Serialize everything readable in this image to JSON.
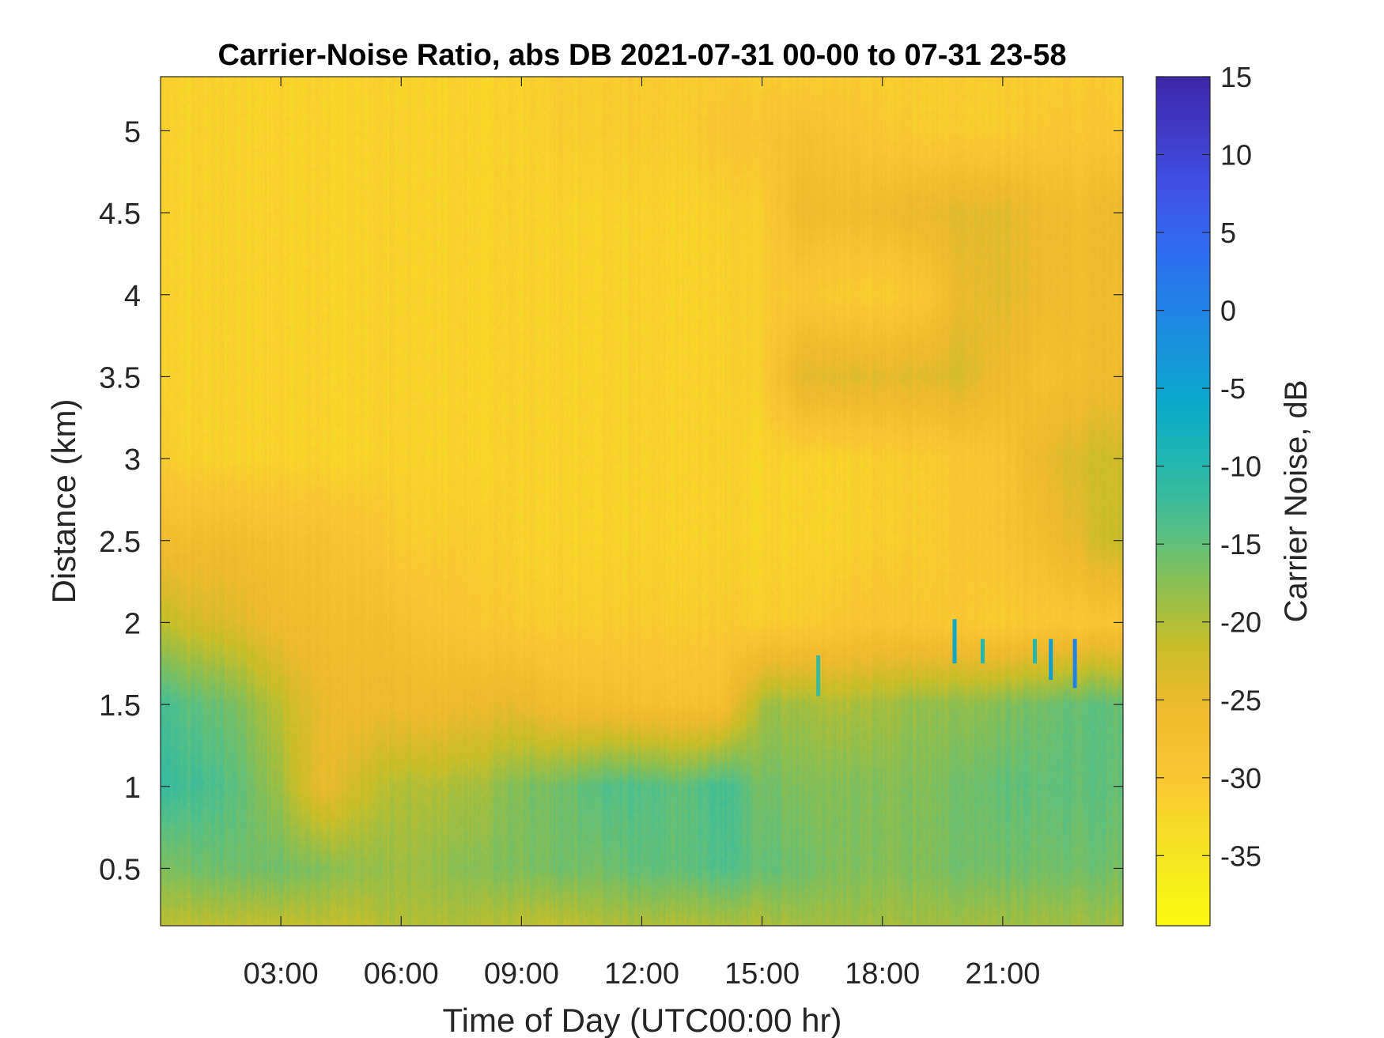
{
  "chart_data": {
    "type": "heatmap",
    "title": "Carrier-Noise Ratio, abs DB 2021-07-31 00-00 to 07-31 23-58",
    "xlabel": "Time of Day (UTC00:00 hr)",
    "ylabel": "Distance (km)",
    "colorbar_label": "Carrier Noise, dB",
    "xlim": [
      0,
      24
    ],
    "ylim": [
      0.15,
      5.33
    ],
    "clim": [
      -39.5,
      15
    ],
    "colormap": "parula (reversed: yellow = low, dark blue = high)",
    "grid": false,
    "x_ticks": [
      {
        "value": 3,
        "label": "03:00"
      },
      {
        "value": 6,
        "label": "06:00"
      },
      {
        "value": 9,
        "label": "09:00"
      },
      {
        "value": 12,
        "label": "12:00"
      },
      {
        "value": 15,
        "label": "15:00"
      },
      {
        "value": 18,
        "label": "18:00"
      },
      {
        "value": 21,
        "label": "21:00"
      }
    ],
    "y_ticks": [
      {
        "value": 0.5,
        "label": "0.5"
      },
      {
        "value": 1,
        "label": "1"
      },
      {
        "value": 1.5,
        "label": "1.5"
      },
      {
        "value": 2,
        "label": "2"
      },
      {
        "value": 2.5,
        "label": "2.5"
      },
      {
        "value": 3,
        "label": "3"
      },
      {
        "value": 3.5,
        "label": "3.5"
      },
      {
        "value": 4,
        "label": "4"
      },
      {
        "value": 4.5,
        "label": "4.5"
      },
      {
        "value": 5,
        "label": "5"
      }
    ],
    "c_ticks": [
      {
        "value": -35,
        "label": "-35"
      },
      {
        "value": -30,
        "label": "-30"
      },
      {
        "value": -25,
        "label": "-25"
      },
      {
        "value": -20,
        "label": "-20"
      },
      {
        "value": -15,
        "label": "-15"
      },
      {
        "value": -10,
        "label": "-10"
      },
      {
        "value": -5,
        "label": "-5"
      },
      {
        "value": 0,
        "label": "0"
      },
      {
        "value": 5,
        "label": "5"
      },
      {
        "value": 10,
        "label": "10"
      },
      {
        "value": 15,
        "label": "15"
      }
    ],
    "time_grid": [
      0,
      1,
      2,
      3,
      4,
      5,
      6,
      7,
      8,
      9,
      10,
      11,
      12,
      13,
      14,
      15,
      16,
      17,
      18,
      19,
      20,
      21,
      22,
      23,
      24
    ],
    "distance_grid": [
      0.15,
      0.5,
      1.0,
      1.5,
      2.0,
      2.5,
      3.0,
      3.5,
      4.0,
      4.5,
      5.0,
      5.33
    ],
    "values_db": [
      [
        -21,
        -21,
        -21,
        -21,
        -21,
        -21,
        -20,
        -20,
        -20,
        -21,
        -21,
        -20,
        -20,
        -20,
        -20,
        -20,
        -19,
        -19,
        -19,
        -19,
        -19,
        -19,
        -19,
        -19,
        -19
      ],
      [
        -17,
        -16,
        -16,
        -16,
        -17,
        -18,
        -19,
        -18,
        -17,
        -17,
        -16,
        -16,
        -15,
        -15,
        -14,
        -15,
        -16,
        -17,
        -17,
        -17,
        -16,
        -16,
        -16,
        -16,
        -16
      ],
      [
        -12,
        -13,
        -15,
        -19,
        -25,
        -22,
        -20,
        -20,
        -19,
        -17,
        -16,
        -14,
        -14,
        -15,
        -13,
        -16,
        -17,
        -17,
        -17,
        -17,
        -16,
        -15,
        -15,
        -15,
        -15
      ],
      [
        -13,
        -15,
        -17,
        -21,
        -25,
        -26,
        -26,
        -26,
        -25,
        -25,
        -27,
        -27,
        -28,
        -28,
        -28,
        -19,
        -19,
        -20,
        -19,
        -18,
        -18,
        -17,
        -16,
        -15,
        -15
      ],
      [
        -21,
        -23,
        -24,
        -26,
        -27,
        -27,
        -28,
        -29,
        -30,
        -31,
        -31,
        -31,
        -31,
        -31,
        -31,
        -31,
        -31,
        -30,
        -29,
        -30,
        -30,
        -31,
        -30,
        -30,
        -29
      ],
      [
        -27,
        -27,
        -27,
        -28,
        -28,
        -29,
        -31,
        -31,
        -31,
        -32,
        -32,
        -32,
        -32,
        -32,
        -32,
        -32,
        -32,
        -32,
        -31,
        -31,
        -30,
        -29,
        -27,
        -24,
        -21
      ],
      [
        -31,
        -32,
        -32,
        -32,
        -32,
        -32,
        -32,
        -32,
        -32,
        -32,
        -32,
        -32,
        -32,
        -32,
        -32,
        -32,
        -32,
        -32,
        -31,
        -31,
        -30,
        -29,
        -25,
        -23,
        -22
      ],
      [
        -32,
        -32,
        -32,
        -32,
        -32,
        -32,
        -32,
        -32,
        -32,
        -32,
        -32,
        -32,
        -32,
        -32,
        -32,
        -31,
        -24,
        -24,
        -24,
        -24,
        -23,
        -26,
        -28,
        -27,
        -26
      ],
      [
        -32,
        -32,
        -32,
        -32,
        -32,
        -32,
        -32,
        -32,
        -32,
        -32,
        -32,
        -32,
        -32,
        -32,
        -32,
        -31,
        -30,
        -31,
        -31,
        -30,
        -25,
        -24,
        -26,
        -27,
        -26
      ],
      [
        -32,
        -32,
        -32,
        -32,
        -32,
        -32,
        -32,
        -32,
        -32,
        -32,
        -32,
        -32,
        -32,
        -32,
        -32,
        -31,
        -26,
        -27,
        -26,
        -25,
        -24,
        -24,
        -26,
        -27,
        -25
      ],
      [
        -32,
        -32,
        -32,
        -32,
        -32,
        -32,
        -32,
        -32,
        -32,
        -32,
        -31,
        -31,
        -31,
        -31,
        -30,
        -29,
        -28,
        -29,
        -30,
        -31,
        -31,
        -31,
        -30,
        -30,
        -30
      ],
      [
        -32,
        -32,
        -32,
        -32,
        -32,
        -32,
        -32,
        -32,
        -32,
        -32,
        -31,
        -31,
        -31,
        -31,
        -31,
        -31,
        -31,
        -31,
        -31,
        -31,
        -31,
        -31,
        -31,
        -31,
        -31
      ]
    ],
    "spikes": [
      {
        "x": 16.4,
        "y0": 1.55,
        "y1": 1.8,
        "value": -12
      },
      {
        "x": 19.8,
        "y0": 1.75,
        "y1": 2.02,
        "value": -6
      },
      {
        "x": 20.5,
        "y0": 1.75,
        "y1": 1.9,
        "value": -10
      },
      {
        "x": 21.8,
        "y0": 1.75,
        "y1": 1.9,
        "value": -10
      },
      {
        "x": 22.2,
        "y0": 1.65,
        "y1": 1.9,
        "value": -4
      },
      {
        "x": 22.8,
        "y0": 1.6,
        "y1": 1.9,
        "value": 0
      }
    ]
  }
}
